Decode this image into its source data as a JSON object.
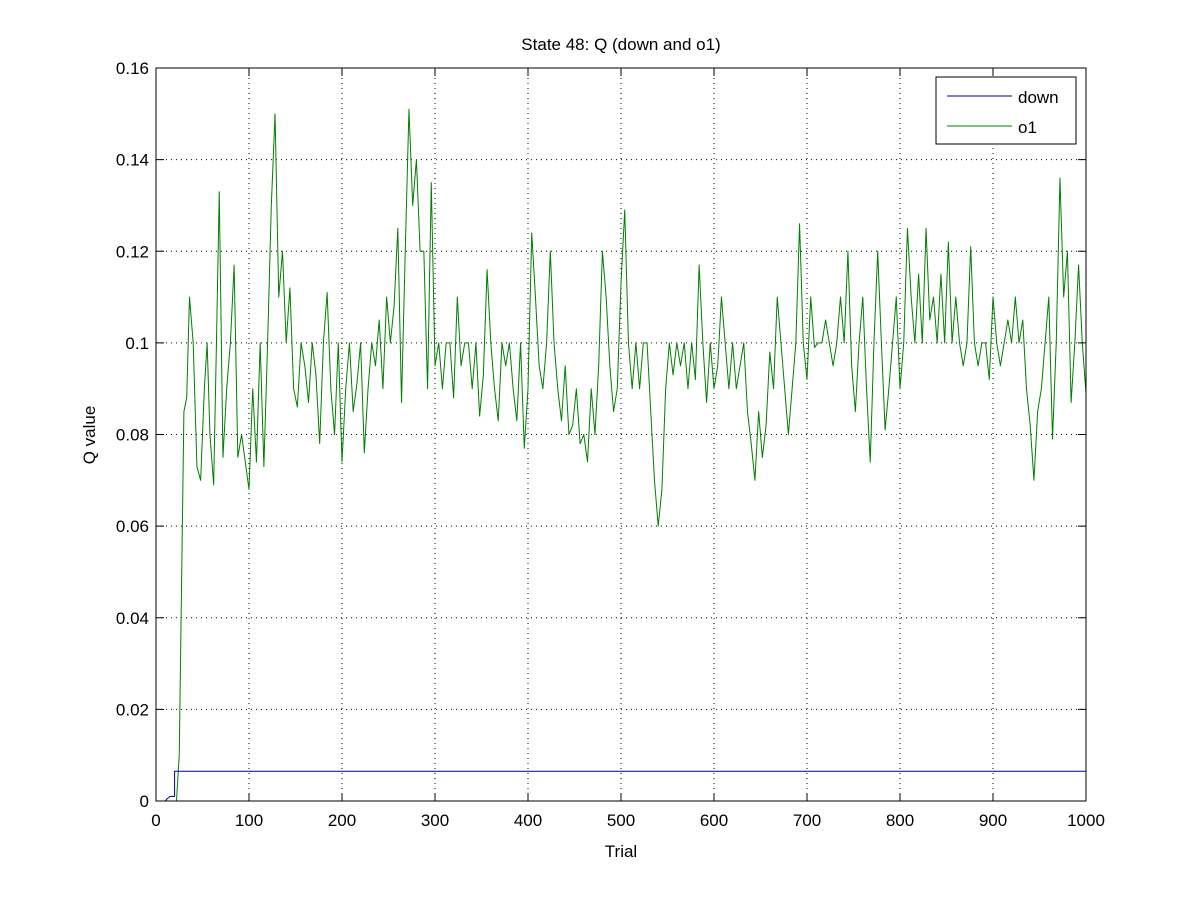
{
  "chart_data": {
    "type": "line",
    "title": "State 48: Q (down and o1)",
    "xlabel": "Trial",
    "ylabel": "Q value",
    "xlim": [
      0,
      1000
    ],
    "ylim": [
      0,
      0.16
    ],
    "xticks": [
      0,
      100,
      200,
      300,
      400,
      500,
      600,
      700,
      800,
      900,
      1000
    ],
    "xtick_labels": [
      "0",
      "100",
      "200",
      "300",
      "400",
      "500",
      "600",
      "700",
      "800",
      "900",
      "1000"
    ],
    "yticks": [
      0,
      0.02,
      0.04,
      0.06,
      0.08,
      0.1,
      0.12,
      0.14,
      0.16
    ],
    "ytick_labels": [
      "0",
      "0.02",
      "0.04",
      "0.06",
      "0.08",
      "0.1",
      "0.12",
      "0.14",
      "0.16"
    ],
    "grid": true,
    "legend_position": "top-right",
    "series": [
      {
        "name": "down",
        "color": "#00008b",
        "points": [
          [
            0,
            0
          ],
          [
            10,
            0
          ],
          [
            12,
            0.0005
          ],
          [
            15,
            0.001
          ],
          [
            20,
            0.001
          ],
          [
            20,
            0.0065
          ],
          [
            25,
            0.0065
          ],
          [
            1000,
            0.0065
          ]
        ]
      },
      {
        "name": "o1",
        "color": "#007f00",
        "points": [
          [
            0,
            0
          ],
          [
            22,
            0
          ],
          [
            25,
            0.01
          ],
          [
            28,
            0.055
          ],
          [
            30,
            0.085
          ],
          [
            33,
            0.088
          ],
          [
            36,
            0.11
          ],
          [
            40,
            0.1
          ],
          [
            44,
            0.073
          ],
          [
            48,
            0.07
          ],
          [
            52,
            0.09
          ],
          [
            55,
            0.1
          ],
          [
            58,
            0.08
          ],
          [
            62,
            0.069
          ],
          [
            65,
            0.1
          ],
          [
            68,
            0.133
          ],
          [
            72,
            0.075
          ],
          [
            76,
            0.09
          ],
          [
            80,
            0.1
          ],
          [
            84,
            0.117
          ],
          [
            88,
            0.075
          ],
          [
            92,
            0.08
          ],
          [
            96,
            0.074
          ],
          [
            100,
            0.068
          ],
          [
            104,
            0.09
          ],
          [
            108,
            0.074
          ],
          [
            112,
            0.1
          ],
          [
            116,
            0.073
          ],
          [
            120,
            0.1
          ],
          [
            124,
            0.13
          ],
          [
            128,
            0.15
          ],
          [
            132,
            0.11
          ],
          [
            136,
            0.12
          ],
          [
            140,
            0.1
          ],
          [
            144,
            0.112
          ],
          [
            148,
            0.09
          ],
          [
            152,
            0.086
          ],
          [
            156,
            0.1
          ],
          [
            160,
            0.095
          ],
          [
            164,
            0.087
          ],
          [
            168,
            0.1
          ],
          [
            172,
            0.093
          ],
          [
            176,
            0.078
          ],
          [
            180,
            0.1
          ],
          [
            184,
            0.111
          ],
          [
            188,
            0.09
          ],
          [
            192,
            0.08
          ],
          [
            196,
            0.1
          ],
          [
            200,
            0.074
          ],
          [
            204,
            0.09
          ],
          [
            208,
            0.1
          ],
          [
            212,
            0.085
          ],
          [
            216,
            0.091
          ],
          [
            220,
            0.1
          ],
          [
            224,
            0.076
          ],
          [
            228,
            0.09
          ],
          [
            232,
            0.1
          ],
          [
            236,
            0.095
          ],
          [
            240,
            0.105
          ],
          [
            244,
            0.09
          ],
          [
            248,
            0.11
          ],
          [
            252,
            0.1
          ],
          [
            256,
            0.108
          ],
          [
            260,
            0.125
          ],
          [
            264,
            0.087
          ],
          [
            268,
            0.12
          ],
          [
            272,
            0.151
          ],
          [
            276,
            0.13
          ],
          [
            280,
            0.14
          ],
          [
            284,
            0.12
          ],
          [
            288,
            0.12
          ],
          [
            292,
            0.09
          ],
          [
            296,
            0.135
          ],
          [
            300,
            0.095
          ],
          [
            304,
            0.1
          ],
          [
            308,
            0.09
          ],
          [
            312,
            0.1
          ],
          [
            316,
            0.1
          ],
          [
            320,
            0.088
          ],
          [
            324,
            0.11
          ],
          [
            328,
            0.095
          ],
          [
            332,
            0.1
          ],
          [
            336,
            0.1
          ],
          [
            340,
            0.09
          ],
          [
            344,
            0.1
          ],
          [
            348,
            0.084
          ],
          [
            352,
            0.093
          ],
          [
            356,
            0.116
          ],
          [
            360,
            0.1
          ],
          [
            364,
            0.09
          ],
          [
            368,
            0.083
          ],
          [
            372,
            0.1
          ],
          [
            376,
            0.095
          ],
          [
            380,
            0.1
          ],
          [
            384,
            0.09
          ],
          [
            388,
            0.083
          ],
          [
            392,
            0.1
          ],
          [
            396,
            0.077
          ],
          [
            400,
            0.09
          ],
          [
            404,
            0.124
          ],
          [
            408,
            0.11
          ],
          [
            412,
            0.095
          ],
          [
            416,
            0.09
          ],
          [
            420,
            0.1
          ],
          [
            424,
            0.12
          ],
          [
            428,
            0.1
          ],
          [
            432,
            0.09
          ],
          [
            436,
            0.083
          ],
          [
            440,
            0.095
          ],
          [
            444,
            0.08
          ],
          [
            448,
            0.082
          ],
          [
            452,
            0.09
          ],
          [
            456,
            0.078
          ],
          [
            460,
            0.08
          ],
          [
            464,
            0.074
          ],
          [
            468,
            0.09
          ],
          [
            472,
            0.08
          ],
          [
            476,
            0.095
          ],
          [
            480,
            0.12
          ],
          [
            484,
            0.11
          ],
          [
            488,
            0.095
          ],
          [
            492,
            0.085
          ],
          [
            496,
            0.09
          ],
          [
            500,
            0.113
          ],
          [
            504,
            0.129
          ],
          [
            508,
            0.1
          ],
          [
            512,
            0.09
          ],
          [
            516,
            0.1
          ],
          [
            520,
            0.09
          ],
          [
            524,
            0.1
          ],
          [
            528,
            0.1
          ],
          [
            532,
            0.085
          ],
          [
            536,
            0.07
          ],
          [
            540,
            0.06
          ],
          [
            544,
            0.068
          ],
          [
            548,
            0.09
          ],
          [
            552,
            0.1
          ],
          [
            556,
            0.093
          ],
          [
            560,
            0.1
          ],
          [
            564,
            0.095
          ],
          [
            568,
            0.1
          ],
          [
            572,
            0.09
          ],
          [
            576,
            0.1
          ],
          [
            580,
            0.092
          ],
          [
            584,
            0.117
          ],
          [
            588,
            0.1
          ],
          [
            592,
            0.087
          ],
          [
            596,
            0.1
          ],
          [
            600,
            0.09
          ],
          [
            604,
            0.095
          ],
          [
            608,
            0.11
          ],
          [
            612,
            0.1
          ],
          [
            616,
            0.09
          ],
          [
            620,
            0.1
          ],
          [
            624,
            0.09
          ],
          [
            628,
            0.095
          ],
          [
            632,
            0.1
          ],
          [
            636,
            0.085
          ],
          [
            640,
            0.078
          ],
          [
            644,
            0.07
          ],
          [
            648,
            0.085
          ],
          [
            652,
            0.075
          ],
          [
            656,
            0.082
          ],
          [
            660,
            0.098
          ],
          [
            664,
            0.09
          ],
          [
            668,
            0.11
          ],
          [
            672,
            0.1
          ],
          [
            676,
            0.09
          ],
          [
            680,
            0.08
          ],
          [
            684,
            0.09
          ],
          [
            688,
            0.1
          ],
          [
            692,
            0.126
          ],
          [
            696,
            0.1
          ],
          [
            700,
            0.092
          ],
          [
            704,
            0.11
          ],
          [
            708,
            0.099
          ],
          [
            712,
            0.1
          ],
          [
            716,
            0.1
          ],
          [
            720,
            0.105
          ],
          [
            724,
            0.1
          ],
          [
            728,
            0.095
          ],
          [
            732,
            0.1
          ],
          [
            736,
            0.11
          ],
          [
            740,
            0.1
          ],
          [
            744,
            0.12
          ],
          [
            748,
            0.095
          ],
          [
            752,
            0.085
          ],
          [
            756,
            0.1
          ],
          [
            760,
            0.11
          ],
          [
            764,
            0.09
          ],
          [
            768,
            0.074
          ],
          [
            772,
            0.1
          ],
          [
            776,
            0.12
          ],
          [
            780,
            0.1
          ],
          [
            784,
            0.081
          ],
          [
            788,
            0.09
          ],
          [
            792,
            0.1
          ],
          [
            796,
            0.11
          ],
          [
            800,
            0.09
          ],
          [
            804,
            0.1
          ],
          [
            808,
            0.125
          ],
          [
            812,
            0.11
          ],
          [
            816,
            0.1
          ],
          [
            820,
            0.115
          ],
          [
            824,
            0.1
          ],
          [
            828,
            0.125
          ],
          [
            832,
            0.105
          ],
          [
            836,
            0.11
          ],
          [
            840,
            0.1
          ],
          [
            844,
            0.115
          ],
          [
            848,
            0.1
          ],
          [
            852,
            0.122
          ],
          [
            856,
            0.1
          ],
          [
            860,
            0.11
          ],
          [
            864,
            0.1
          ],
          [
            868,
            0.095
          ],
          [
            872,
            0.1
          ],
          [
            876,
            0.121
          ],
          [
            880,
            0.1
          ],
          [
            884,
            0.095
          ],
          [
            888,
            0.1
          ],
          [
            892,
            0.1
          ],
          [
            896,
            0.092
          ],
          [
            900,
            0.11
          ],
          [
            904,
            0.1
          ],
          [
            908,
            0.095
          ],
          [
            912,
            0.1
          ],
          [
            916,
            0.105
          ],
          [
            920,
            0.1
          ],
          [
            924,
            0.11
          ],
          [
            928,
            0.1
          ],
          [
            932,
            0.105
          ],
          [
            936,
            0.09
          ],
          [
            940,
            0.082
          ],
          [
            944,
            0.07
          ],
          [
            948,
            0.085
          ],
          [
            952,
            0.09
          ],
          [
            956,
            0.1
          ],
          [
            960,
            0.11
          ],
          [
            964,
            0.079
          ],
          [
            968,
            0.1
          ],
          [
            972,
            0.136
          ],
          [
            976,
            0.11
          ],
          [
            980,
            0.12
          ],
          [
            984,
            0.087
          ],
          [
            988,
            0.1
          ],
          [
            992,
            0.117
          ],
          [
            996,
            0.1
          ],
          [
            1000,
            0.089
          ]
        ]
      }
    ]
  }
}
